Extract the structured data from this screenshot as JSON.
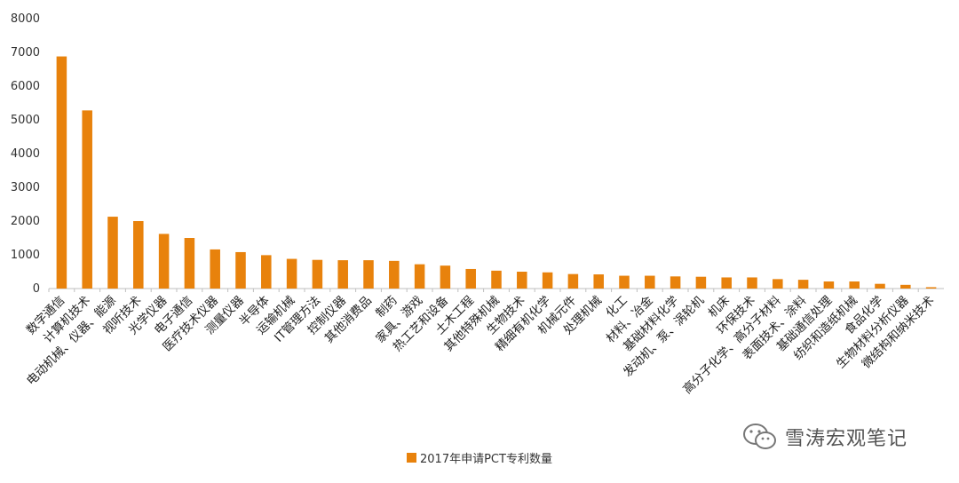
{
  "chart_data": {
    "type": "bar",
    "categories": [
      "数字通信",
      "计算机技术",
      "电动机械、仪器、能源",
      "视听技术",
      "光学仪器",
      "电子通信",
      "医疗技术仪器",
      "测量仪器",
      "半导体",
      "运输机械",
      "IT管理方法",
      "控制仪器",
      "其他消费品",
      "制药",
      "家具、游戏",
      "热工艺和设备",
      "土木工程",
      "其他特殊机械",
      "生物技术",
      "精细有机化学",
      "机械元件",
      "处理机械",
      "化工",
      "材料、冶金",
      "基础材料化学",
      "发动机、泵、涡轮机",
      "机床",
      "环保技术",
      "高分子化学、高分子材料",
      "表面技术、涂料",
      "基础通信处理",
      "纺织和造纸机械",
      "食品化学",
      "生物材料分析仪器",
      "微结构和纳米技术"
    ],
    "series": [
      {
        "name": "2017年申请PCT专利数量",
        "values": [
          6880,
          5280,
          2130,
          2000,
          1620,
          1500,
          1160,
          1080,
          990,
          880,
          850,
          840,
          840,
          820,
          720,
          680,
          580,
          530,
          500,
          480,
          430,
          420,
          380,
          380,
          360,
          350,
          330,
          330,
          280,
          260,
          210,
          210,
          140,
          110,
          40
        ]
      }
    ],
    "ylim": [
      0,
      8000
    ],
    "yticks": [
      0,
      1000,
      2000,
      3000,
      4000,
      5000,
      6000,
      7000,
      8000
    ],
    "legend_position": "bottom",
    "grid": false,
    "bar_color": "#E8820C"
  },
  "watermark": {
    "text": "雪涛宏观笔记",
    "icon": "wechat-icon"
  }
}
